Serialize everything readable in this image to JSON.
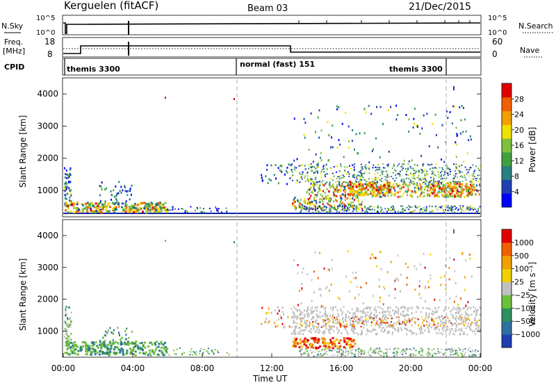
{
  "header": {
    "station": "Kerguelen (fitACF)",
    "beam": "Beam 03",
    "date": "21/Dec/2015"
  },
  "panels": {
    "nsky": {
      "left_label": "N.Sky",
      "left_ticks": [
        "10^5",
        "10^0"
      ],
      "right_label": "N.Search",
      "right_ticks": [
        "10^5",
        "10^0"
      ]
    },
    "freq": {
      "left_label": "Freq.",
      "left_unit": "[MHz]",
      "left_ticks": [
        "18",
        "8"
      ],
      "right_label": "Nave",
      "right_ticks": [
        "60",
        "0"
      ]
    },
    "cpid": {
      "label": "CPID",
      "segments": [
        "themis 3300",
        "normal (fast) 151",
        "themis 3300"
      ]
    }
  },
  "chart_data": [
    {
      "type": "heatmap",
      "name": "power",
      "ylabel": "Slant Range [km]",
      "yticks": [
        "4000",
        "3000",
        "2000",
        "1000"
      ],
      "ylim": [
        180,
        4500
      ],
      "xlim": [
        0,
        24
      ],
      "colorbar": {
        "label": "Power [dB]",
        "ticks": [
          "28",
          "24",
          "20",
          "16",
          "12",
          "8",
          "4"
        ],
        "colors": [
          "#0000ff",
          "#2040b0",
          "#2a7f7f",
          "#40a040",
          "#80c040",
          "#f0e000",
          "#f0a000",
          "#f06000",
          "#e00000"
        ]
      }
    },
    {
      "type": "heatmap",
      "name": "velocity",
      "ylabel": "Slant Range [km]",
      "yticks": [
        "4000",
        "3000",
        "2000",
        "1000"
      ],
      "ylim": [
        180,
        4500
      ],
      "xlim": [
        0,
        24
      ],
      "xlabel": "Time UT",
      "xticks": [
        "00:00",
        "04:00",
        "08:00",
        "12:00",
        "16:00",
        "20:00",
        "00:00"
      ],
      "colorbar": {
        "label": "Velocity [m s⁻¹]",
        "ticks": [
          "1000",
          "500",
          "100",
          "25",
          "−25",
          "−100",
          "−500",
          "−1000"
        ],
        "colors": [
          "#1f3fb0",
          "#2f70a0",
          "#2f8f5f",
          "#6fbf3f",
          "#c0c0c0",
          "#f0d000",
          "#f0a000",
          "#f06000",
          "#e00000"
        ]
      }
    }
  ]
}
